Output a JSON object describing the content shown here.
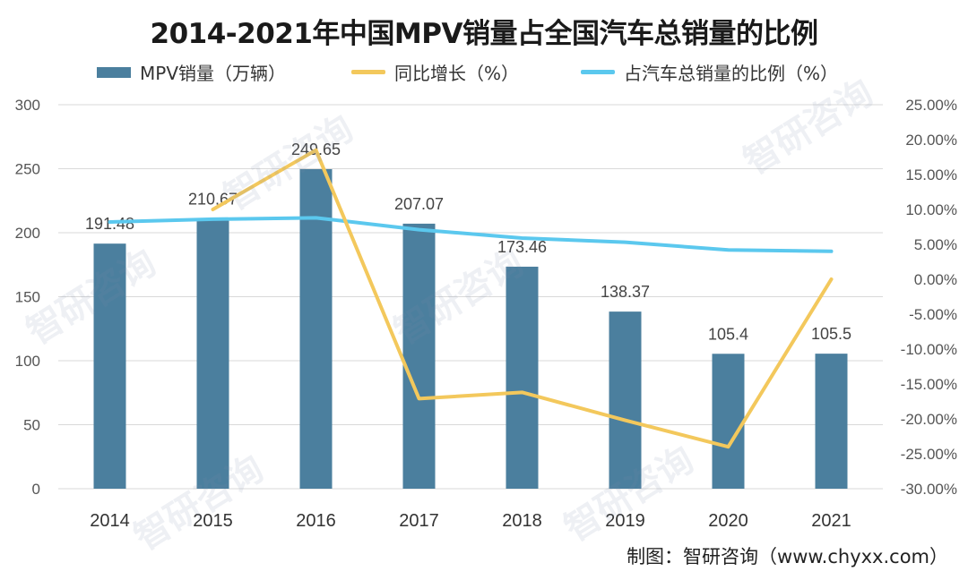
{
  "title": "2014-2021年中国MPV销量占全国汽车总销量的比例",
  "legend": {
    "bar": "MPV销量（万辆）",
    "growth": "同比增长（%）",
    "share": "占汽车总销量的比例（%）"
  },
  "source": "制图：智研咨询（www.chyxx.com）",
  "watermark": "智研咨询",
  "colors": {
    "bar": "#4b7f9e",
    "growth": "#f3c85c",
    "share": "#5bc8ee"
  },
  "chart_data": {
    "type": "bar",
    "categories": [
      "2014",
      "2015",
      "2016",
      "2017",
      "2018",
      "2019",
      "2020",
      "2021"
    ],
    "series": [
      {
        "name": "MPV销量（万辆）",
        "type": "bar",
        "axis": "left",
        "values": [
          191.48,
          210.67,
          249.65,
          207.07,
          173.46,
          138.37,
          105.4,
          105.5
        ],
        "labels": [
          "191.48",
          "210.67",
          "249.65",
          "207.07",
          "173.46",
          "138.37",
          "105.4",
          "105.5"
        ]
      },
      {
        "name": "同比增长（%）",
        "type": "line",
        "axis": "right",
        "values": [
          null,
          10.0,
          18.5,
          -17.1,
          -16.2,
          -20.2,
          -24.0,
          0.0
        ]
      },
      {
        "name": "占汽车总销量的比例（%）",
        "type": "line",
        "axis": "right",
        "values": [
          8.2,
          8.6,
          8.8,
          7.1,
          5.9,
          5.3,
          4.2,
          4.0
        ]
      }
    ],
    "ylim_left": [
      0,
      300
    ],
    "yticks_left": [
      "0",
      "50",
      "100",
      "150",
      "200",
      "250",
      "300"
    ],
    "ylim_right": [
      -30,
      25
    ],
    "yticks_right": [
      "-30.00%",
      "-25.00%",
      "-20.00%",
      "-15.00%",
      "-10.00%",
      "-5.00%",
      "0.00%",
      "5.00%",
      "10.00%",
      "15.00%",
      "20.00%",
      "25.00%"
    ],
    "grid": true,
    "legend_position": "top"
  }
}
